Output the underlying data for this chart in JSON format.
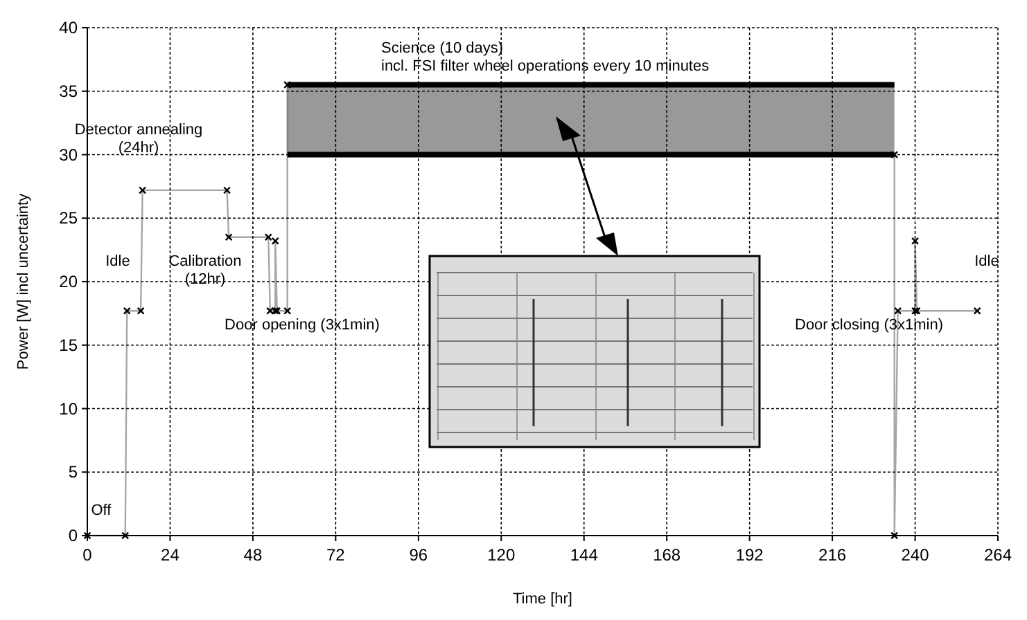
{
  "chart_data": {
    "type": "line",
    "xlabel": "Time [hr]",
    "ylabel": "Power [W] incl uncertainty",
    "xlim": [
      0,
      264
    ],
    "xticks": [
      0,
      24,
      48,
      72,
      96,
      120,
      144,
      168,
      192,
      216,
      240,
      264
    ],
    "ylim": [
      0,
      40
    ],
    "yticks": [
      0,
      5,
      10,
      15,
      20,
      25,
      30,
      35,
      40
    ],
    "grid": true,
    "marker": "cross",
    "line_style": "solid",
    "series": [
      {
        "color": "#000000",
        "x": [
          0,
          11,
          11.5,
          15.5,
          16,
          40.5,
          41,
          52.5,
          53,
          54.5,
          54.5,
          55,
          58,
          58,
          146,
          234,
          234,
          235,
          240,
          240,
          240.5,
          258
        ],
        "values": [
          0,
          0,
          17.7,
          17.7,
          27.2,
          27.2,
          23.5,
          23.5,
          17.7,
          17.7,
          23.2,
          17.7,
          17.7,
          35.5,
          null,
          30,
          0,
          17.7,
          17.7,
          23.2,
          17.7,
          17.7
        ]
      },
      {
        "color": "#000000",
        "marker": "none",
        "x": [
          58,
          234
        ],
        "values": [
          35.5,
          35.5
        ],
        "lower": [
          30,
          30
        ],
        "upper": [
          35.5,
          35.5
        ]
      }
    ],
    "annotations": [
      "Off",
      "Idle",
      "Detector annealing\n(24hr)",
      "Calibration\n(12hr)",
      "Door opening (3x1min)",
      "Science (10 days)\nincl. FSI filter wheel operations every 10 minutes",
      "Door closing (3x1min)",
      "Idle"
    ]
  }
}
